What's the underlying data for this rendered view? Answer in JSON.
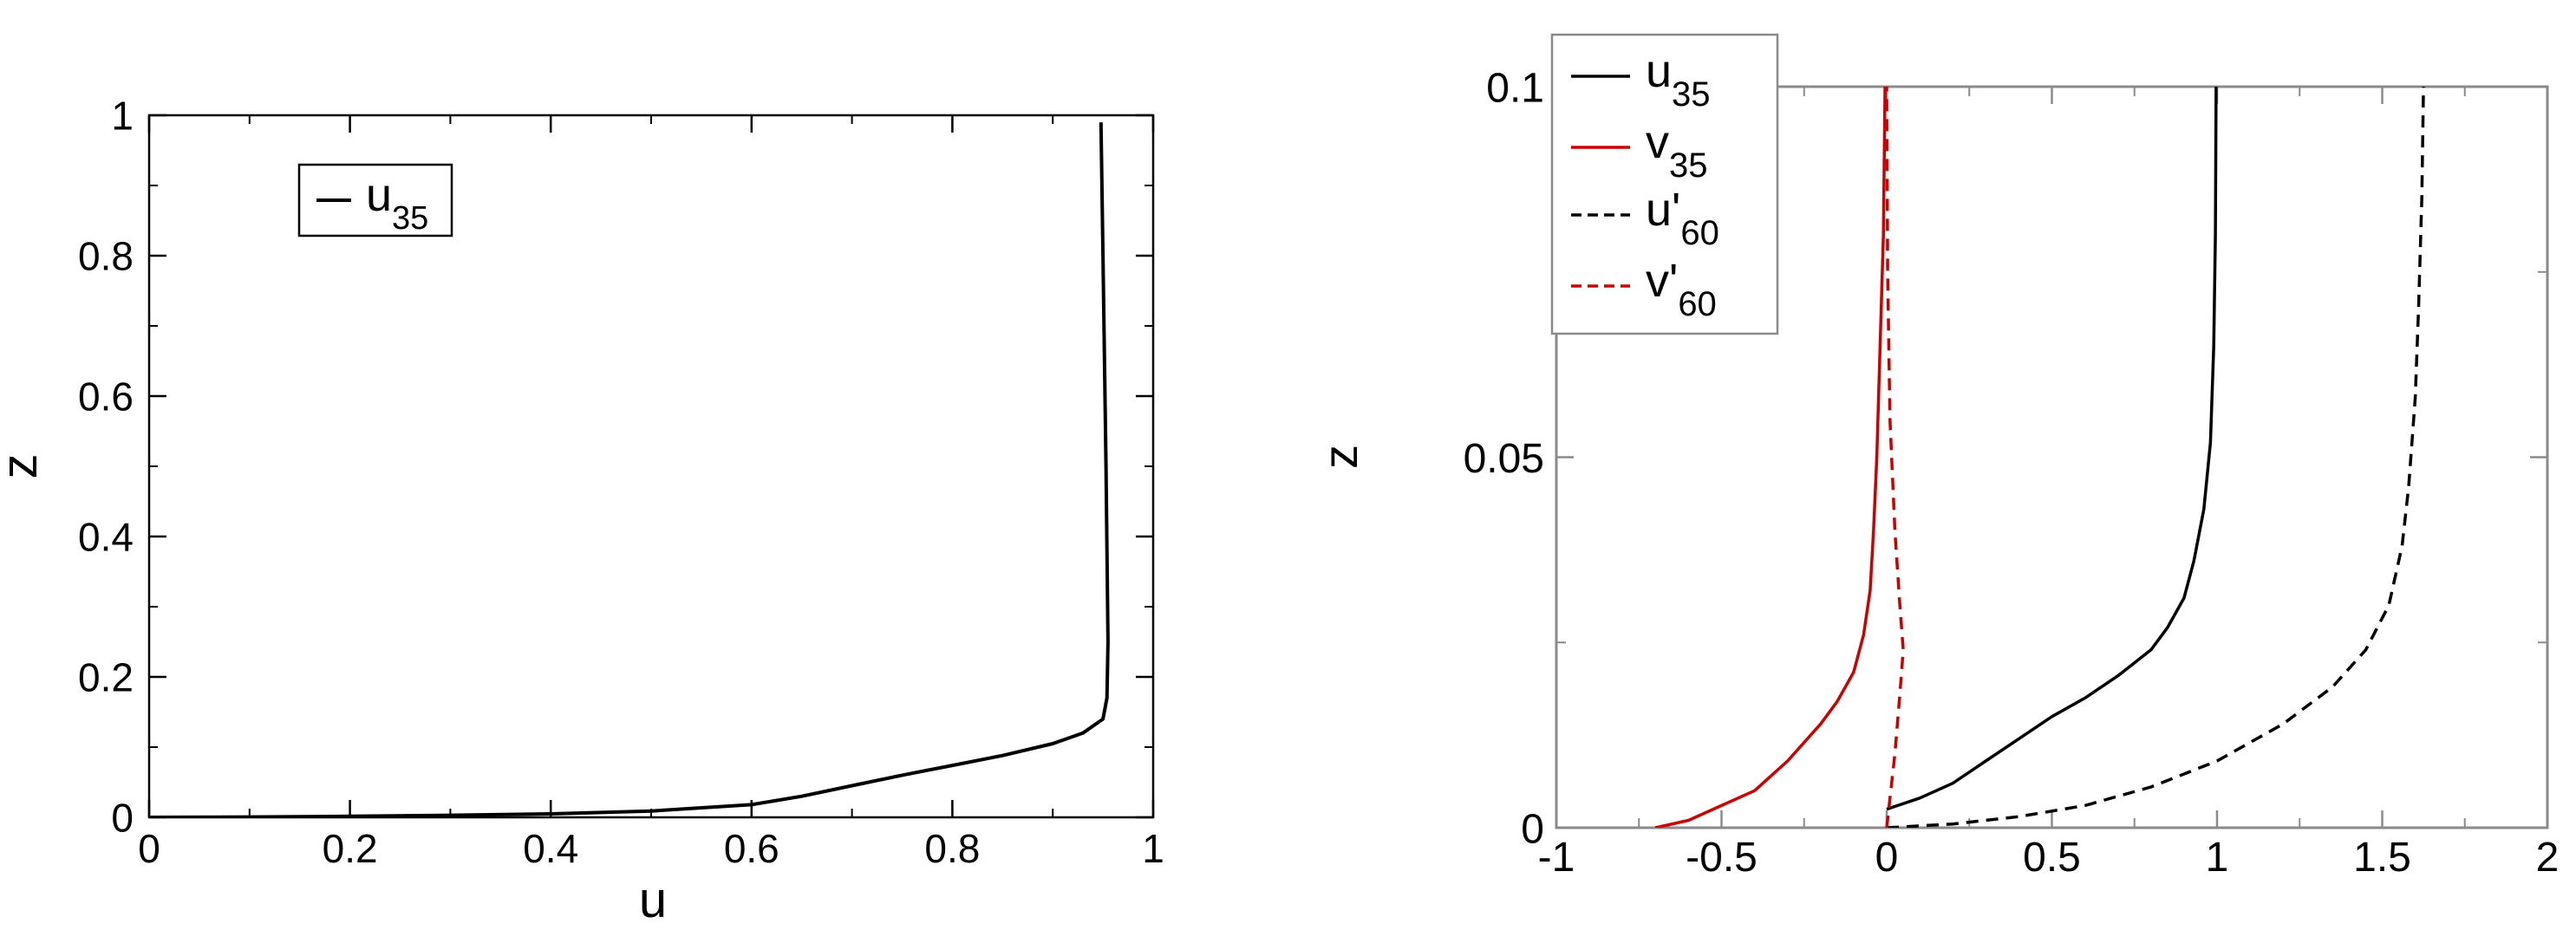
{
  "chart_data": [
    {
      "type": "line",
      "xlabel": "u",
      "ylabel": "z",
      "xlim": [
        0,
        1
      ],
      "ylim": [
        0,
        1
      ],
      "grid": false,
      "legend_position": "top-left",
      "xticks": [
        0,
        0.2,
        0.4,
        0.6,
        0.8,
        1
      ],
      "xtick_labels": [
        "0",
        "0.2",
        "0.4",
        "0.6",
        "0.8",
        "1"
      ],
      "yticks": [
        0,
        0.2,
        0.4,
        0.6,
        0.8,
        1
      ],
      "ytick_labels": [
        "0",
        "0.2",
        "0.4",
        "0.6",
        "0.8",
        "1"
      ],
      "series": [
        {
          "name": "u",
          "name_sub": "35",
          "color": "#000000",
          "dash": "solid",
          "x": [
            0,
            0.1,
            0.2,
            0.3,
            0.4,
            0.5,
            0.6,
            0.65,
            0.7,
            0.75,
            0.8,
            0.85,
            0.9,
            0.93,
            0.95,
            0.954,
            0.955,
            0.953,
            0.95,
            0.948
          ],
          "y": [
            0,
            0.0005,
            0.0015,
            0.003,
            0.005,
            0.009,
            0.018,
            0.03,
            0.045,
            0.06,
            0.074,
            0.088,
            0.105,
            0.12,
            0.14,
            0.17,
            0.25,
            0.5,
            0.8,
            0.99
          ]
        }
      ]
    },
    {
      "type": "line",
      "xlabel": "",
      "ylabel": "z",
      "xlim": [
        -1,
        2
      ],
      "ylim": [
        0,
        0.1
      ],
      "grid": false,
      "legend_position": "top-left",
      "xticks": [
        -1,
        -0.5,
        0,
        0.5,
        1,
        1.5,
        2
      ],
      "xtick_labels": [
        "-1",
        "-0.5",
        "0",
        "0.5",
        "1",
        "1.5",
        "2"
      ],
      "yticks": [
        0,
        0.05,
        0.1
      ],
      "ytick_labels": [
        "0",
        "0.05",
        "0.1"
      ],
      "series": [
        {
          "name": "u",
          "name_sub": "35",
          "color": "#000000",
          "dash": "solid",
          "x": [
            0,
            0.1,
            0.2,
            0.3,
            0.4,
            0.5,
            0.6,
            0.7,
            0.8,
            0.85,
            0.9,
            0.93,
            0.96,
            0.98,
            0.99,
            0.995,
            0.997
          ],
          "y": [
            0.0025,
            0.004,
            0.006,
            0.009,
            0.012,
            0.015,
            0.0175,
            0.0205,
            0.024,
            0.027,
            0.031,
            0.036,
            0.043,
            0.052,
            0.065,
            0.08,
            0.1
          ]
        },
        {
          "name": "v",
          "name_sub": "35",
          "color": "#cc0000",
          "dash": "solid",
          "x": [
            -0.7,
            -0.6,
            -0.5,
            -0.4,
            -0.3,
            -0.2,
            -0.15,
            -0.1,
            -0.07,
            -0.05,
            -0.04,
            -0.03,
            -0.02,
            -0.01,
            -0.005
          ],
          "y": [
            0,
            0.001,
            0.003,
            0.005,
            0.009,
            0.014,
            0.017,
            0.021,
            0.026,
            0.032,
            0.04,
            0.05,
            0.065,
            0.08,
            0.1
          ]
        },
        {
          "name": "u'",
          "name_sub": "60",
          "color": "#000000",
          "dash": "dashed",
          "x": [
            0,
            0.2,
            0.4,
            0.6,
            0.8,
            1.0,
            1.2,
            1.35,
            1.45,
            1.52,
            1.56,
            1.58,
            1.6,
            1.61,
            1.62,
            1.625
          ],
          "y": [
            0,
            0.0005,
            0.0015,
            0.003,
            0.0055,
            0.009,
            0.014,
            0.019,
            0.024,
            0.03,
            0.038,
            0.046,
            0.058,
            0.07,
            0.085,
            0.1
          ]
        },
        {
          "name": "v'",
          "name_sub": "60",
          "color": "#cc0000",
          "dash": "dashed",
          "x": [
            0.0,
            0.01,
            0.025,
            0.04,
            0.05,
            0.04,
            0.025,
            0.01,
            0.003,
            0.0
          ],
          "y": [
            0.0,
            0.004,
            0.01,
            0.018,
            0.024,
            0.03,
            0.04,
            0.055,
            0.075,
            0.1
          ]
        }
      ]
    }
  ]
}
